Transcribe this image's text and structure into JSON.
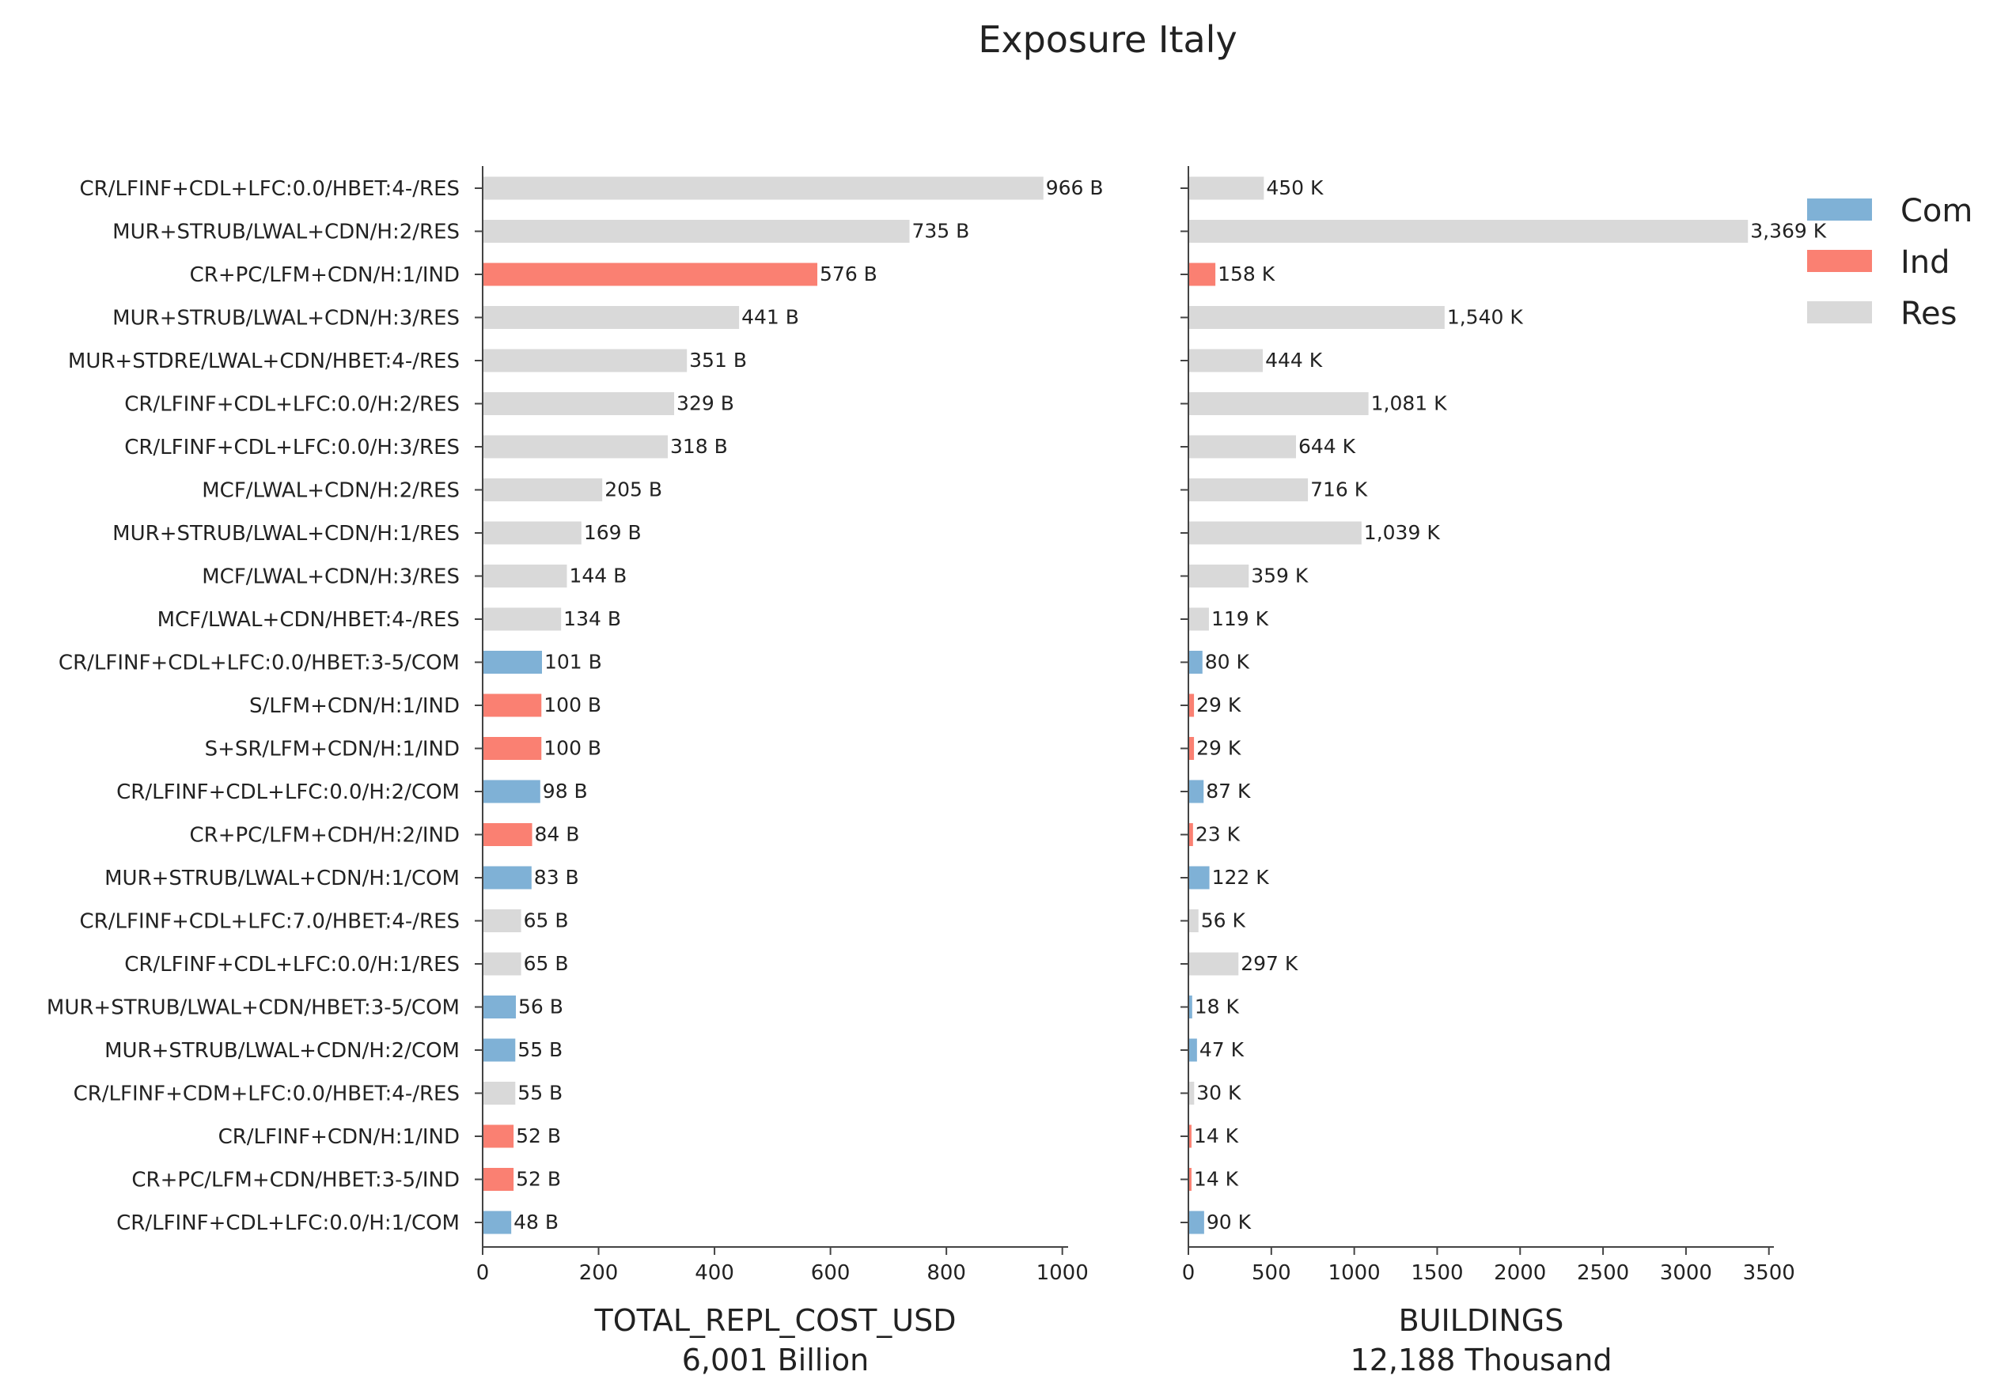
{
  "chart_data": {
    "type": "bar",
    "orientation": "horizontal",
    "title": "Exposure Italy",
    "legend": {
      "placement": "top-right",
      "entries": [
        {
          "name": "Com",
          "color": "#7fb1d6"
        },
        {
          "name": "Ind",
          "color": "#fa8072"
        },
        {
          "name": "Res",
          "color": "#d9d9d9"
        }
      ]
    },
    "categories": [
      "CR/LFINF+CDL+LFC:0.0/HBET:4-/RES",
      "MUR+STRUB/LWAL+CDN/H:2/RES",
      "CR+PC/LFM+CDN/H:1/IND",
      "MUR+STRUB/LWAL+CDN/H:3/RES",
      "MUR+STDRE/LWAL+CDN/HBET:4-/RES",
      "CR/LFINF+CDL+LFC:0.0/H:2/RES",
      "CR/LFINF+CDL+LFC:0.0/H:3/RES",
      "MCF/LWAL+CDN/H:2/RES",
      "MUR+STRUB/LWAL+CDN/H:1/RES",
      "MCF/LWAL+CDN/H:3/RES",
      "MCF/LWAL+CDN/HBET:4-/RES",
      "CR/LFINF+CDL+LFC:0.0/HBET:3-5/COM",
      "S/LFM+CDN/H:1/IND",
      "S+SR/LFM+CDN/H:1/IND",
      "CR/LFINF+CDL+LFC:0.0/H:2/COM",
      "CR+PC/LFM+CDH/H:2/IND",
      "MUR+STRUB/LWAL+CDN/H:1/COM",
      "CR/LFINF+CDL+LFC:7.0/HBET:4-/RES",
      "CR/LFINF+CDL+LFC:0.0/H:1/RES",
      "MUR+STRUB/LWAL+CDN/HBET:3-5/COM",
      "MUR+STRUB/LWAL+CDN/H:2/COM",
      "CR/LFINF+CDM+LFC:0.0/HBET:4-/RES",
      "CR/LFINF+CDN/H:1/IND",
      "CR+PC/LFM+CDN/HBET:3-5/IND",
      "CR/LFINF+CDL+LFC:0.0/H:1/COM"
    ],
    "occupancy": [
      "Res",
      "Res",
      "Ind",
      "Res",
      "Res",
      "Res",
      "Res",
      "Res",
      "Res",
      "Res",
      "Res",
      "Com",
      "Ind",
      "Ind",
      "Com",
      "Ind",
      "Com",
      "Res",
      "Res",
      "Com",
      "Com",
      "Res",
      "Ind",
      "Ind",
      "Com"
    ],
    "panels": [
      {
        "xlabel": "TOTAL_REPL_COST_USD",
        "subtitle": "6,001 Billion",
        "xlim": [
          0,
          1010
        ],
        "xticks": [
          "0",
          "200",
          "400",
          "600",
          "800",
          "1000"
        ],
        "values": [
          966,
          735,
          576,
          441,
          351,
          329,
          318,
          205,
          169,
          144,
          134,
          101,
          100,
          100,
          98,
          84,
          83,
          65,
          65,
          56,
          55,
          55,
          52,
          52,
          48
        ],
        "value_labels": [
          "966 B",
          "735 B",
          "576 B",
          "441 B",
          "351 B",
          "329 B",
          "318 B",
          "205 B",
          "169 B",
          "144 B",
          "134 B",
          "101 B",
          "100 B",
          "100 B",
          "98 B",
          "84 B",
          "83 B",
          "65 B",
          "65 B",
          "56 B",
          "55 B",
          "55 B",
          "52 B",
          "52 B",
          "48 B"
        ]
      },
      {
        "xlabel": "BUILDINGS",
        "subtitle": "12,188 Thousand",
        "xlim": [
          0,
          3530
        ],
        "xticks": [
          "0",
          "500",
          "1000",
          "1500",
          "2000",
          "2500",
          "3000",
          "3500"
        ],
        "values": [
          450,
          3369,
          158,
          1540,
          444,
          1081,
          644,
          716,
          1039,
          359,
          119,
          80,
          29,
          29,
          87,
          23,
          122,
          56,
          297,
          18,
          47,
          30,
          14,
          14,
          90
        ],
        "value_labels": [
          "450 K",
          "3,369 K",
          "158 K",
          "1,540 K",
          "444 K",
          "1,081 K",
          "644 K",
          "716 K",
          "1,039 K",
          "359 K",
          "119 K",
          "80 K",
          "29 K",
          "29 K",
          "87 K",
          "23 K",
          "122 K",
          "56 K",
          "297 K",
          "18 K",
          "47 K",
          "30 K",
          "14 K",
          "14 K",
          "90 K"
        ]
      }
    ]
  }
}
